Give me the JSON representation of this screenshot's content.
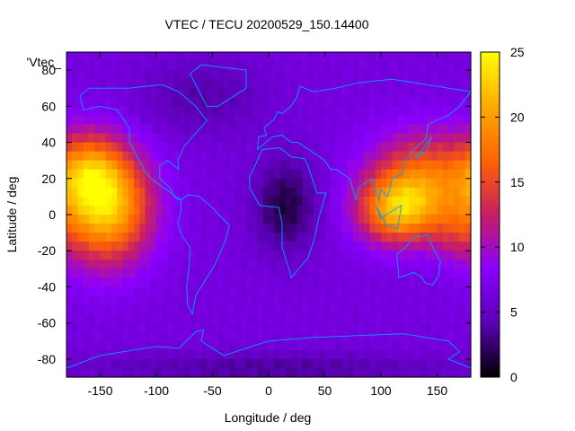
{
  "chart_data": {
    "type": "heatmap",
    "title": "VTEC / TECU 20200529_150.14400",
    "xlabel": "Longitude / deg",
    "ylabel": "Latitude / deg",
    "key_label": "'Vtec_",
    "xlim": [
      -180,
      180
    ],
    "ylim": [
      -90,
      90
    ],
    "xticks": [
      -150,
      -100,
      -50,
      0,
      50,
      100,
      150
    ],
    "yticks": [
      -80,
      -60,
      -40,
      -20,
      0,
      20,
      40,
      60,
      80
    ],
    "colorbar": {
      "range": [
        0,
        25
      ],
      "ticks": [
        0,
        5,
        10,
        15,
        20,
        25
      ],
      "palette": [
        "#000000",
        "#5a00b4",
        "#8a00ff",
        "#c81e64",
        "#ff6400",
        "#ffaa00",
        "#ffff00"
      ]
    },
    "grid": "off",
    "coastline_color": "#00a0ff",
    "hotspots": [
      {
        "lon": -145,
        "lat": 5,
        "sigma_lon": 28,
        "sigma_lat": 22,
        "peak": 16
      },
      {
        "lon": -160,
        "lat": 25,
        "sigma_lon": 20,
        "sigma_lat": 14,
        "peak": 6
      },
      {
        "lon": 115,
        "lat": 2,
        "sigma_lon": 25,
        "sigma_lat": 13,
        "peak": 12
      },
      {
        "lon": 140,
        "lat": 20,
        "sigma_lon": 35,
        "sigma_lat": 18,
        "peak": 10
      },
      {
        "lon": 165,
        "lat": -10,
        "sigma_lon": 15,
        "sigma_lat": 12,
        "peak": 3
      }
    ],
    "background_level": 6.5,
    "low_regions": [
      {
        "lon": 15,
        "lat": 5,
        "sigma_lon": 20,
        "sigma_lat": 18,
        "depth": 5
      },
      {
        "lon": -60,
        "lat": 65,
        "sigma_lon": 40,
        "sigma_lat": 15,
        "depth": 2.5
      },
      {
        "lon": 0,
        "lat": -85,
        "sigma_lon": 120,
        "sigma_lat": 6,
        "depth": 3
      }
    ]
  }
}
